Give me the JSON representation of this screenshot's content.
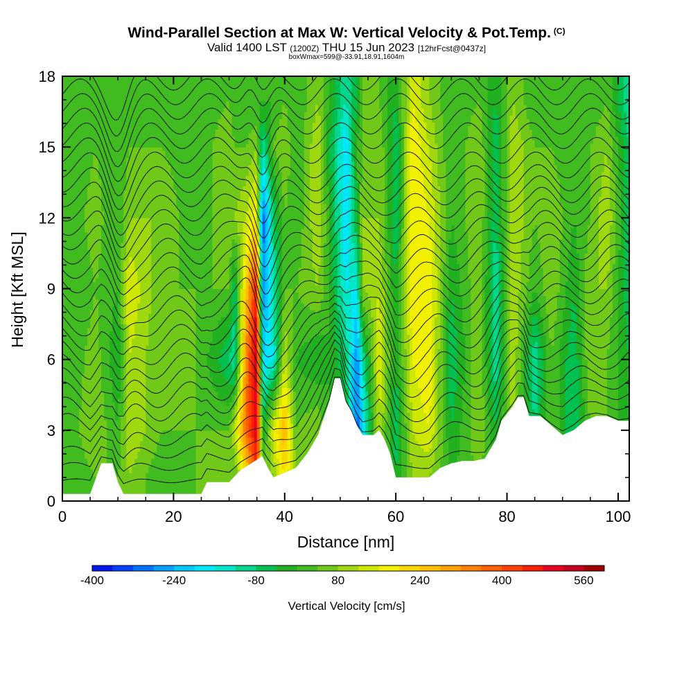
{
  "header": {
    "title": "Wind-Parallel Section at Max W: Vertical Velocity & Pot.Temp.",
    "copyright": "(C)",
    "valid_main": "Valid 1400 LST",
    "valid_utc": "(1200Z)",
    "valid_date": "THU 15 Jun 2023",
    "forecast": "[12hrFcst@0437z]",
    "boxinfo": "boxWmax=599@-33.91,18.91,1604m"
  },
  "chart_data": {
    "type": "heatmap",
    "xlabel": "Distance [nm]",
    "ylabel": "Height [Kft MSL]",
    "xlim": [
      0,
      102
    ],
    "ylim": [
      0,
      18
    ],
    "x_ticks": [
      0,
      20,
      40,
      60,
      80,
      100
    ],
    "y_ticks": [
      0,
      3,
      6,
      9,
      12,
      15,
      18
    ],
    "grid": false,
    "contours": "potential temperature (thin black lines)",
    "colorbar": {
      "label": "Vertical Velocity [cm/s]",
      "tick_labels": [
        -400,
        -240,
        -80,
        80,
        240,
        400,
        560
      ],
      "min": -400,
      "max": 600,
      "step": 40,
      "colors": [
        "#0018f0",
        "#0040ff",
        "#0070ff",
        "#00a0ff",
        "#00c8ff",
        "#00e6ff",
        "#00e6c8",
        "#00d68c",
        "#00c050",
        "#20b020",
        "#40bc20",
        "#70c818",
        "#a0d810",
        "#d0e800",
        "#f0f000",
        "#f8d800",
        "#ffc000",
        "#ffa000",
        "#ff8000",
        "#ff6000",
        "#ff4000",
        "#f82000",
        "#e80020",
        "#c80020",
        "#a00000"
      ]
    },
    "terrain_kft": [
      [
        0,
        0.3
      ],
      [
        5,
        0.3
      ],
      [
        7,
        1.6
      ],
      [
        9,
        1.6
      ],
      [
        10,
        0.8
      ],
      [
        11,
        0.3
      ],
      [
        16,
        0.3
      ],
      [
        20,
        0.3
      ],
      [
        25,
        0.3
      ],
      [
        26,
        0.8
      ],
      [
        28,
        0.8
      ],
      [
        30,
        0.8
      ],
      [
        32,
        1.3
      ],
      [
        34,
        1.6
      ],
      [
        36,
        1.9
      ],
      [
        37,
        1.4
      ],
      [
        38,
        1.0
      ],
      [
        42,
        1.4
      ],
      [
        44,
        2.0
      ],
      [
        46,
        2.8
      ],
      [
        48,
        4.2
      ],
      [
        49,
        5.2
      ],
      [
        50,
        5.2
      ],
      [
        51,
        4.2
      ],
      [
        52,
        3.8
      ],
      [
        53,
        3.2
      ],
      [
        54,
        2.8
      ],
      [
        56,
        2.8
      ],
      [
        57,
        3.0
      ],
      [
        58,
        2.6
      ],
      [
        59,
        2.0
      ],
      [
        60,
        1.0
      ],
      [
        62,
        1.0
      ],
      [
        64,
        1.0
      ],
      [
        66,
        1.0
      ],
      [
        68,
        1.4
      ],
      [
        70,
        1.6
      ],
      [
        72,
        1.7
      ],
      [
        74,
        1.7
      ],
      [
        76,
        1.8
      ],
      [
        78,
        2.6
      ],
      [
        79,
        3.4
      ],
      [
        81,
        4.0
      ],
      [
        82,
        4.4
      ],
      [
        83,
        4.4
      ],
      [
        84,
        3.6
      ],
      [
        86,
        3.6
      ],
      [
        88,
        3.2
      ],
      [
        90,
        2.8
      ],
      [
        92,
        3.0
      ],
      [
        94,
        3.4
      ],
      [
        96,
        3.6
      ],
      [
        98,
        3.6
      ],
      [
        100,
        3.4
      ],
      [
        102,
        3.4
      ]
    ],
    "w_cm_s_at_heights": {
      "heights_kft": [
        1,
        3,
        6,
        9,
        12,
        15,
        17
      ],
      "columns": [
        {
          "x": 0,
          "w": [
            0,
            0,
            0,
            0,
            0,
            0,
            0
          ]
        },
        {
          "x": 6,
          "w": [
            40,
            80,
            60,
            40,
            60,
            40,
            40
          ]
        },
        {
          "x": 10,
          "w": [
            40,
            0,
            -40,
            0,
            0,
            0,
            0
          ]
        },
        {
          "x": 12,
          "w": [
            80,
            120,
            120,
            160,
            80,
            40,
            0
          ]
        },
        {
          "x": 18,
          "w": [
            0,
            40,
            40,
            40,
            80,
            40,
            0
          ]
        },
        {
          "x": 24,
          "w": [
            40,
            40,
            40,
            40,
            0,
            0,
            0
          ]
        },
        {
          "x": 30,
          "w": [
            80,
            40,
            -80,
            40,
            80,
            80,
            40
          ]
        },
        {
          "x": 31,
          "w": [
            40,
            120,
            -120,
            -80,
            80,
            40,
            0
          ]
        },
        {
          "x": 33,
          "w": [
            200,
            360,
            320,
            240,
            120,
            40,
            0
          ]
        },
        {
          "x": 35,
          "w": [
            440,
            520,
            560,
            480,
            200,
            80,
            0
          ]
        },
        {
          "x": 36,
          "w": [
            40,
            -40,
            -200,
            -280,
            -320,
            -120,
            0
          ]
        },
        {
          "x": 38,
          "w": [
            80,
            160,
            -160,
            -120,
            -80,
            40,
            0
          ]
        },
        {
          "x": 40,
          "w": [
            200,
            280,
            120,
            40,
            40,
            80,
            40
          ]
        },
        {
          "x": 42,
          "w": [
            80,
            40,
            0,
            40,
            0,
            0,
            0
          ]
        },
        {
          "x": 46,
          "w": [
            40,
            80,
            -40,
            80,
            120,
            120,
            80
          ]
        },
        {
          "x": 48,
          "w": [
            0,
            0,
            0,
            0,
            0,
            -40,
            0
          ]
        },
        {
          "x": 51,
          "w": [
            0,
            0,
            -80,
            -160,
            -200,
            -200,
            -120
          ]
        },
        {
          "x": 53,
          "w": [
            0,
            -320,
            -280,
            -160,
            -40,
            0,
            -40
          ]
        },
        {
          "x": 54,
          "w": [
            0,
            -200,
            -120,
            80,
            80,
            40,
            40
          ]
        },
        {
          "x": 57,
          "w": [
            80,
            120,
            160,
            120,
            80,
            80,
            40
          ]
        },
        {
          "x": 60,
          "w": [
            -40,
            -80,
            -40,
            -40,
            -80,
            -80,
            -40
          ]
        },
        {
          "x": 63,
          "w": [
            80,
            120,
            160,
            200,
            200,
            200,
            160
          ]
        },
        {
          "x": 66,
          "w": [
            80,
            160,
            200,
            200,
            160,
            120,
            80
          ]
        },
        {
          "x": 70,
          "w": [
            0,
            -40,
            -80,
            -40,
            0,
            0,
            0
          ]
        },
        {
          "x": 75,
          "w": [
            40,
            80,
            80,
            80,
            80,
            80,
            40
          ]
        },
        {
          "x": 78,
          "w": [
            0,
            -40,
            -120,
            -120,
            -80,
            -80,
            -40
          ]
        },
        {
          "x": 81,
          "w": [
            40,
            80,
            120,
            120,
            120,
            120,
            80
          ]
        },
        {
          "x": 85,
          "w": [
            0,
            -80,
            -120,
            0,
            40,
            40,
            0
          ]
        },
        {
          "x": 88,
          "w": [
            40,
            40,
            40,
            80,
            80,
            40,
            0
          ]
        },
        {
          "x": 92,
          "w": [
            0,
            -80,
            -80,
            -40,
            0,
            0,
            0
          ]
        },
        {
          "x": 95,
          "w": [
            40,
            40,
            80,
            80,
            40,
            40,
            0
          ]
        },
        {
          "x": 98,
          "w": [
            0,
            40,
            40,
            80,
            120,
            80,
            40
          ]
        },
        {
          "x": 102,
          "w": [
            0,
            -40,
            -40,
            -80,
            -80,
            -80,
            -120
          ]
        }
      ]
    }
  }
}
